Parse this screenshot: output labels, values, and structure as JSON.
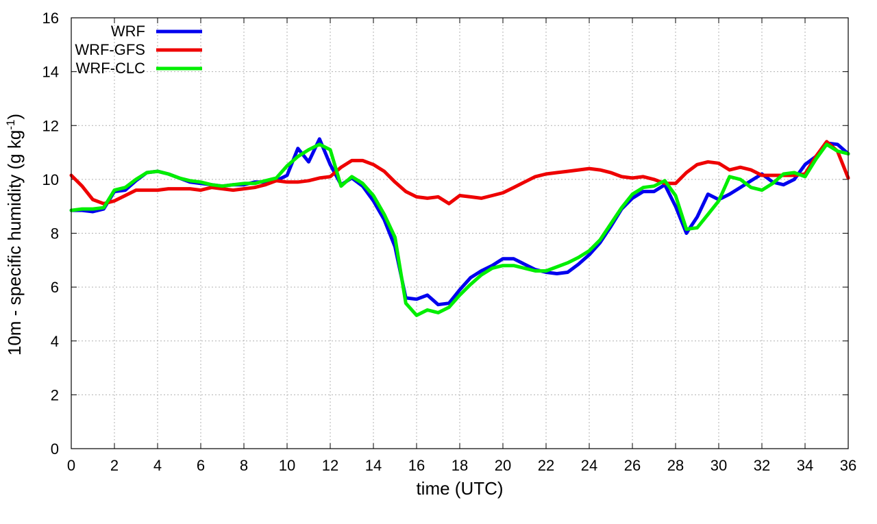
{
  "chart_data": {
    "type": "line",
    "xlabel": "time (UTC)",
    "ylabel": {
      "prefix": "10m - specific humidity (g kg",
      "superscript": "-1",
      "suffix": ")"
    },
    "xlim": [
      0,
      36
    ],
    "ylim": [
      0,
      16
    ],
    "x_ticks": [
      0,
      2,
      4,
      6,
      8,
      10,
      12,
      14,
      16,
      18,
      20,
      22,
      24,
      26,
      28,
      30,
      32,
      34,
      36
    ],
    "y_ticks": [
      0,
      2,
      4,
      6,
      8,
      10,
      12,
      14,
      16
    ],
    "grid": true,
    "legend_position": "top-left",
    "series": [
      {
        "name": "WRF",
        "color": "#0000ee",
        "points": [
          [
            0,
            8.85
          ],
          [
            0.5,
            8.85
          ],
          [
            1,
            8.8
          ],
          [
            1.5,
            8.9
          ],
          [
            2,
            9.55
          ],
          [
            2.5,
            9.6
          ],
          [
            3,
            9.95
          ],
          [
            3.5,
            10.25
          ],
          [
            4,
            10.3
          ],
          [
            4.5,
            10.2
          ],
          [
            5,
            10.05
          ],
          [
            5.5,
            9.9
          ],
          [
            6,
            9.85
          ],
          [
            6.5,
            9.8
          ],
          [
            7,
            9.75
          ],
          [
            7.5,
            9.8
          ],
          [
            8,
            9.8
          ],
          [
            8.5,
            9.9
          ],
          [
            9,
            9.9
          ],
          [
            9.5,
            9.95
          ],
          [
            10,
            10.15
          ],
          [
            10.5,
            11.15
          ],
          [
            11,
            10.65
          ],
          [
            11.5,
            11.5
          ],
          [
            12,
            10.55
          ],
          [
            12.5,
            9.8
          ],
          [
            13,
            10.05
          ],
          [
            13.5,
            9.75
          ],
          [
            14,
            9.2
          ],
          [
            14.5,
            8.5
          ],
          [
            15,
            7.5
          ],
          [
            15.5,
            5.6
          ],
          [
            16,
            5.55
          ],
          [
            16.5,
            5.7
          ],
          [
            17,
            5.35
          ],
          [
            17.5,
            5.4
          ],
          [
            18,
            5.9
          ],
          [
            18.5,
            6.35
          ],
          [
            19,
            6.6
          ],
          [
            19.5,
            6.8
          ],
          [
            20,
            7.05
          ],
          [
            20.5,
            7.05
          ],
          [
            21,
            6.85
          ],
          [
            21.5,
            6.65
          ],
          [
            22,
            6.55
          ],
          [
            22.5,
            6.5
          ],
          [
            23,
            6.55
          ],
          [
            23.5,
            6.85
          ],
          [
            24,
            7.2
          ],
          [
            24.5,
            7.65
          ],
          [
            25,
            8.25
          ],
          [
            25.5,
            8.9
          ],
          [
            26,
            9.3
          ],
          [
            26.5,
            9.55
          ],
          [
            27,
            9.55
          ],
          [
            27.5,
            9.8
          ],
          [
            28,
            9.0
          ],
          [
            28.5,
            8.0
          ],
          [
            29,
            8.6
          ],
          [
            29.5,
            9.45
          ],
          [
            30,
            9.25
          ],
          [
            30.5,
            9.45
          ],
          [
            31,
            9.7
          ],
          [
            31.5,
            9.95
          ],
          [
            32,
            10.2
          ],
          [
            32.5,
            9.9
          ],
          [
            33,
            9.8
          ],
          [
            33.5,
            10.0
          ],
          [
            34,
            10.55
          ],
          [
            34.5,
            10.85
          ],
          [
            35,
            11.35
          ],
          [
            35.5,
            11.3
          ],
          [
            36,
            10.95
          ]
        ]
      },
      {
        "name": "WRF-GFS",
        "color": "#ee0000",
        "points": [
          [
            0,
            10.15
          ],
          [
            0.5,
            9.75
          ],
          [
            1,
            9.25
          ],
          [
            1.5,
            9.1
          ],
          [
            2,
            9.2
          ],
          [
            2.5,
            9.4
          ],
          [
            3,
            9.6
          ],
          [
            3.5,
            9.6
          ],
          [
            4,
            9.6
          ],
          [
            4.5,
            9.65
          ],
          [
            5,
            9.65
          ],
          [
            5.5,
            9.65
          ],
          [
            6,
            9.6
          ],
          [
            6.5,
            9.7
          ],
          [
            7,
            9.65
          ],
          [
            7.5,
            9.6
          ],
          [
            8,
            9.65
          ],
          [
            8.5,
            9.7
          ],
          [
            9,
            9.8
          ],
          [
            9.5,
            9.95
          ],
          [
            10,
            9.9
          ],
          [
            10.5,
            9.9
          ],
          [
            11,
            9.95
          ],
          [
            11.5,
            10.05
          ],
          [
            12,
            10.1
          ],
          [
            12.5,
            10.45
          ],
          [
            13,
            10.7
          ],
          [
            13.5,
            10.7
          ],
          [
            14,
            10.55
          ],
          [
            14.5,
            10.3
          ],
          [
            15,
            9.9
          ],
          [
            15.5,
            9.55
          ],
          [
            16,
            9.35
          ],
          [
            16.5,
            9.3
          ],
          [
            17,
            9.35
          ],
          [
            17.5,
            9.1
          ],
          [
            18,
            9.4
          ],
          [
            18.5,
            9.35
          ],
          [
            19,
            9.3
          ],
          [
            19.5,
            9.4
          ],
          [
            20,
            9.5
          ],
          [
            20.5,
            9.7
          ],
          [
            21,
            9.9
          ],
          [
            21.5,
            10.1
          ],
          [
            22,
            10.2
          ],
          [
            22.5,
            10.25
          ],
          [
            23,
            10.3
          ],
          [
            23.5,
            10.35
          ],
          [
            24,
            10.4
          ],
          [
            24.5,
            10.35
          ],
          [
            25,
            10.25
          ],
          [
            25.5,
            10.1
          ],
          [
            26,
            10.05
          ],
          [
            26.5,
            10.1
          ],
          [
            27,
            10.0
          ],
          [
            27.5,
            9.85
          ],
          [
            28,
            9.85
          ],
          [
            28.5,
            10.25
          ],
          [
            29,
            10.55
          ],
          [
            29.5,
            10.65
          ],
          [
            30,
            10.6
          ],
          [
            30.5,
            10.35
          ],
          [
            31,
            10.45
          ],
          [
            31.5,
            10.35
          ],
          [
            32,
            10.15
          ],
          [
            32.5,
            10.15
          ],
          [
            33,
            10.15
          ],
          [
            33.5,
            10.15
          ],
          [
            34,
            10.2
          ],
          [
            34.5,
            10.85
          ],
          [
            35,
            11.4
          ],
          [
            35.5,
            11.05
          ],
          [
            36,
            10.05
          ]
        ]
      },
      {
        "name": "WRF-CLC",
        "color": "#00ee00",
        "points": [
          [
            0,
            8.85
          ],
          [
            0.5,
            8.9
          ],
          [
            1,
            8.9
          ],
          [
            1.5,
            8.95
          ],
          [
            2,
            9.6
          ],
          [
            2.5,
            9.7
          ],
          [
            3,
            10.0
          ],
          [
            3.5,
            10.25
          ],
          [
            4,
            10.3
          ],
          [
            4.5,
            10.2
          ],
          [
            5,
            10.05
          ],
          [
            5.5,
            9.95
          ],
          [
            6,
            9.9
          ],
          [
            6.5,
            9.8
          ],
          [
            7,
            9.75
          ],
          [
            7.5,
            9.8
          ],
          [
            8,
            9.85
          ],
          [
            8.5,
            9.85
          ],
          [
            9,
            9.95
          ],
          [
            9.5,
            10.05
          ],
          [
            10,
            10.5
          ],
          [
            10.5,
            10.85
          ],
          [
            11,
            11.1
          ],
          [
            11.5,
            11.3
          ],
          [
            12,
            11.1
          ],
          [
            12.5,
            9.75
          ],
          [
            13,
            10.1
          ],
          [
            13.5,
            9.85
          ],
          [
            14,
            9.4
          ],
          [
            14.5,
            8.7
          ],
          [
            15,
            7.85
          ],
          [
            15.5,
            5.4
          ],
          [
            16,
            4.95
          ],
          [
            16.5,
            5.15
          ],
          [
            17,
            5.05
          ],
          [
            17.5,
            5.25
          ],
          [
            18,
            5.7
          ],
          [
            18.5,
            6.1
          ],
          [
            19,
            6.45
          ],
          [
            19.5,
            6.7
          ],
          [
            20,
            6.8
          ],
          [
            20.5,
            6.8
          ],
          [
            21,
            6.7
          ],
          [
            21.5,
            6.6
          ],
          [
            22,
            6.6
          ],
          [
            22.5,
            6.75
          ],
          [
            23,
            6.9
          ],
          [
            23.5,
            7.1
          ],
          [
            24,
            7.35
          ],
          [
            24.5,
            7.75
          ],
          [
            25,
            8.35
          ],
          [
            25.5,
            8.95
          ],
          [
            26,
            9.45
          ],
          [
            26.5,
            9.7
          ],
          [
            27,
            9.75
          ],
          [
            27.5,
            9.95
          ],
          [
            28,
            9.4
          ],
          [
            28.5,
            8.15
          ],
          [
            29,
            8.2
          ],
          [
            29.5,
            8.7
          ],
          [
            30,
            9.2
          ],
          [
            30.5,
            10.1
          ],
          [
            31,
            10.0
          ],
          [
            31.5,
            9.7
          ],
          [
            32,
            9.6
          ],
          [
            32.5,
            9.85
          ],
          [
            33,
            10.2
          ],
          [
            33.5,
            10.25
          ],
          [
            34,
            10.1
          ],
          [
            34.5,
            10.75
          ],
          [
            35,
            11.3
          ],
          [
            35.5,
            11.05
          ],
          [
            36,
            10.95
          ]
        ]
      }
    ]
  }
}
